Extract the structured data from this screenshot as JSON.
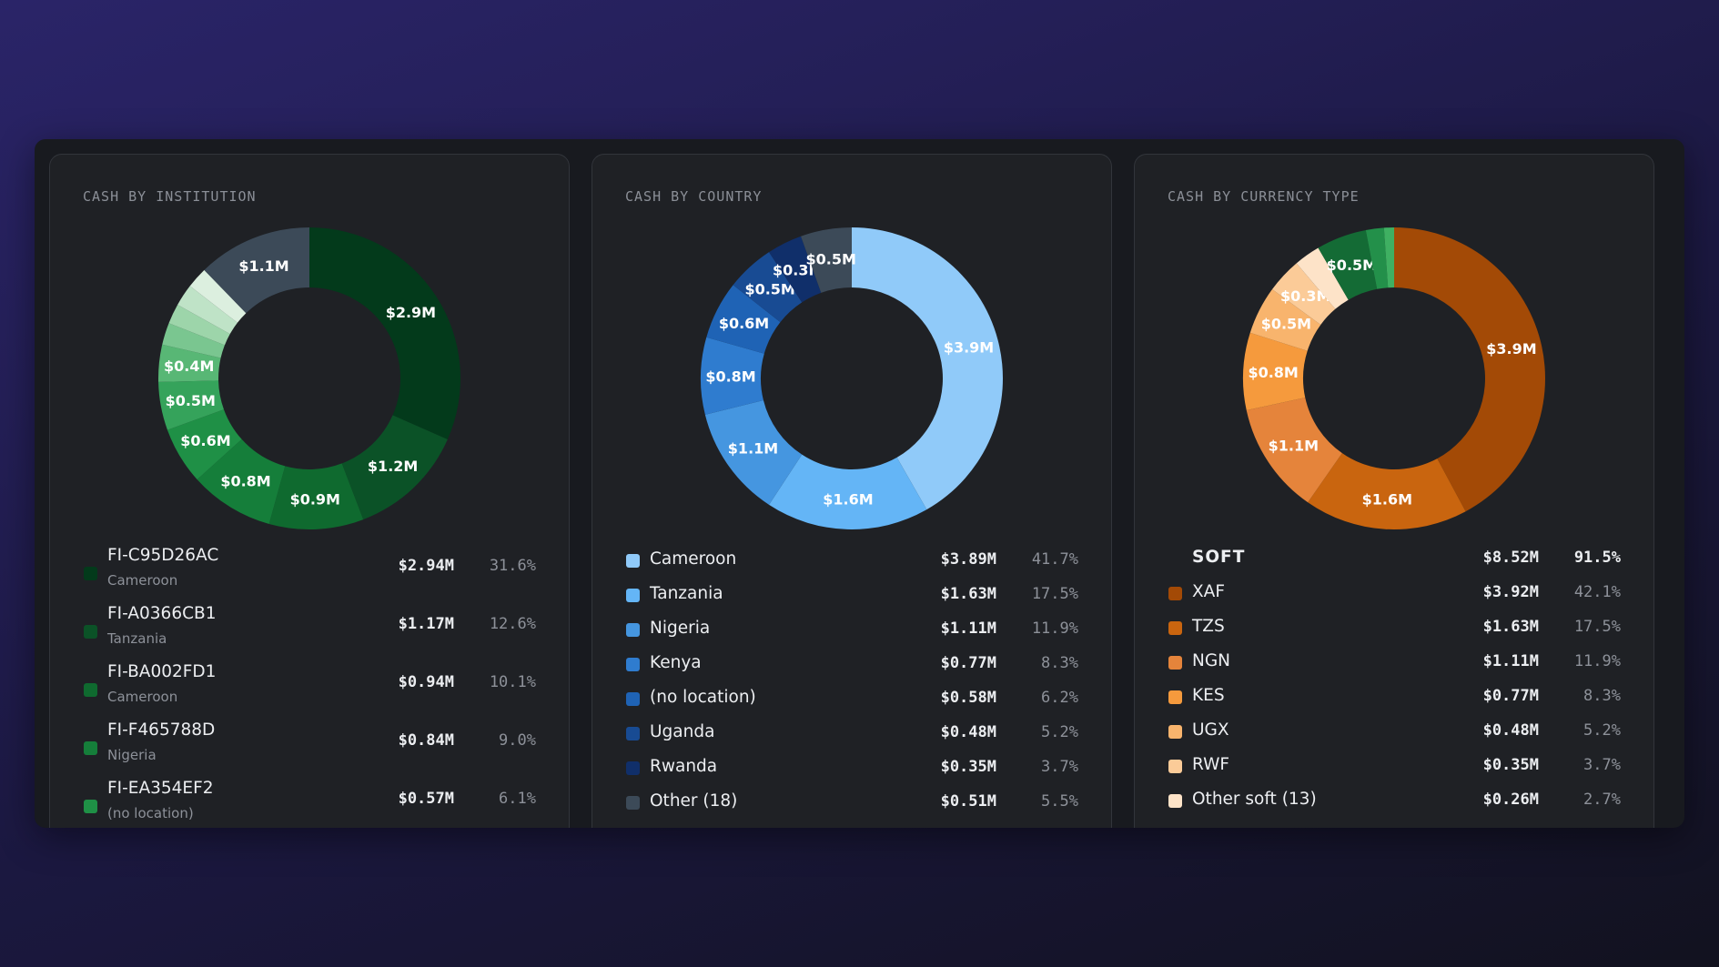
{
  "chart_data": [
    {
      "type": "pie",
      "title": "CASH BY INSTITUTION",
      "slices": [
        {
          "label": "FI-C95D26AC",
          "value": 2.94,
          "color": "#033a1b",
          "data_label": "$2.9M"
        },
        {
          "label": "FI-A0366CB1",
          "value": 1.17,
          "color": "#0b5227",
          "data_label": "$1.2M"
        },
        {
          "label": "FI-BA002FD1",
          "value": 0.94,
          "color": "#0f6a2f",
          "data_label": "$0.9M"
        },
        {
          "label": "FI-F465788D",
          "value": 0.84,
          "color": "#157e3a",
          "data_label": "$0.8M"
        },
        {
          "label": "FI-EA354EF2",
          "value": 0.57,
          "color": "#1f9046",
          "data_label": "$0.6M"
        },
        {
          "label": "",
          "value": 0.48,
          "color": "#35a35b",
          "data_label": "$0.5M"
        },
        {
          "label": "",
          "value": 0.37,
          "color": "#58b775",
          "data_label": "$0.4M"
        },
        {
          "label": "",
          "value": 0.22,
          "color": "#7ac690",
          "data_label": ""
        },
        {
          "label": "",
          "value": 0.2,
          "color": "#9dd5aa",
          "data_label": ""
        },
        {
          "label": "",
          "value": 0.22,
          "color": "#bfe3c7",
          "data_label": ""
        },
        {
          "label": "",
          "value": 0.21,
          "color": "#dcefdf",
          "data_label": ""
        },
        {
          "label": "",
          "value": 1.14,
          "color": "#3c4a58",
          "data_label": "$1.1M"
        }
      ],
      "legend": [
        {
          "name": "FI-C95D26AC",
          "country": "Cameroon",
          "amount": "$2.94M",
          "pct": "31.6%",
          "color": "#033a1b"
        },
        {
          "name": "FI-A0366CB1",
          "country": "Tanzania",
          "amount": "$1.17M",
          "pct": "12.6%",
          "color": "#0b5227"
        },
        {
          "name": "FI-BA002FD1",
          "country": "Cameroon",
          "amount": "$0.94M",
          "pct": "10.1%",
          "color": "#0f6a2f"
        },
        {
          "name": "FI-F465788D",
          "country": "Nigeria",
          "amount": "$0.84M",
          "pct": "9.0%",
          "color": "#157e3a"
        },
        {
          "name": "FI-EA354EF2",
          "country": "(no location)",
          "amount": "$0.57M",
          "pct": "6.1%",
          "color": "#1f9046"
        }
      ]
    },
    {
      "type": "pie",
      "title": "CASH BY COUNTRY",
      "slices": [
        {
          "label": "Cameroon",
          "value": 3.89,
          "color": "#90caf9",
          "data_label": "$3.9M"
        },
        {
          "label": "Tanzania",
          "value": 1.63,
          "color": "#64b5f6",
          "data_label": "$1.6M"
        },
        {
          "label": "Nigeria",
          "value": 1.11,
          "color": "#4596e0",
          "data_label": "$1.1M"
        },
        {
          "label": "Kenya",
          "value": 0.77,
          "color": "#2f7ccf",
          "data_label": "$0.8M"
        },
        {
          "label": "(no location)",
          "value": 0.58,
          "color": "#1f63b5",
          "data_label": "$0.6M"
        },
        {
          "label": "Uganda",
          "value": 0.48,
          "color": "#184b93",
          "data_label": "$0.5M"
        },
        {
          "label": "Rwanda",
          "value": 0.35,
          "color": "#102f6a",
          "data_label": "$0.3M"
        },
        {
          "label": "Other (18)",
          "value": 0.51,
          "color": "#3c4a58",
          "data_label": "$0.5M"
        }
      ],
      "legend": [
        {
          "name": "Cameroon",
          "amount": "$3.89M",
          "pct": "41.7%",
          "color": "#90caf9"
        },
        {
          "name": "Tanzania",
          "amount": "$1.63M",
          "pct": "17.5%",
          "color": "#64b5f6"
        },
        {
          "name": "Nigeria",
          "amount": "$1.11M",
          "pct": "11.9%",
          "color": "#4596e0"
        },
        {
          "name": "Kenya",
          "amount": "$0.77M",
          "pct": "8.3%",
          "color": "#2f7ccf"
        },
        {
          "name": "(no location)",
          "amount": "$0.58M",
          "pct": "6.2%",
          "color": "#1f63b5"
        },
        {
          "name": "Uganda",
          "amount": "$0.48M",
          "pct": "5.2%",
          "color": "#184b93"
        },
        {
          "name": "Rwanda",
          "amount": "$0.35M",
          "pct": "3.7%",
          "color": "#102f6a"
        },
        {
          "name": "Other (18)",
          "amount": "$0.51M",
          "pct": "5.5%",
          "color": "#3c4a58"
        }
      ]
    },
    {
      "type": "pie",
      "title": "CASH BY CURRENCY TYPE",
      "slices": [
        {
          "label": "XAF",
          "value": 3.92,
          "color": "#a34a06",
          "data_label": "$3.9M"
        },
        {
          "label": "TZS",
          "value": 1.63,
          "color": "#c9650f",
          "data_label": "$1.6M"
        },
        {
          "label": "NGN",
          "value": 1.11,
          "color": "#e5843b",
          "data_label": "$1.1M"
        },
        {
          "label": "KES",
          "value": 0.77,
          "color": "#f59a3d",
          "data_label": "$0.8M"
        },
        {
          "label": "UGX",
          "value": 0.48,
          "color": "#f8b46d",
          "data_label": "$0.5M"
        },
        {
          "label": "RWF",
          "value": 0.35,
          "color": "#fbcb98",
          "data_label": "$0.3M"
        },
        {
          "label": "Other soft (13)",
          "value": 0.26,
          "color": "#fde3c8",
          "data_label": ""
        },
        {
          "label": "",
          "value": 0.5,
          "color": "#146b35",
          "data_label": "$0.5M"
        },
        {
          "label": "",
          "value": 0.18,
          "color": "#23904a",
          "data_label": ""
        },
        {
          "label": "",
          "value": 0.1,
          "color": "#3fb062",
          "data_label": ""
        }
      ],
      "group_header": {
        "name": "SOFT",
        "amount": "$8.52M",
        "pct": "91.5%"
      },
      "legend": [
        {
          "name": "XAF",
          "amount": "$3.92M",
          "pct": "42.1%",
          "color": "#a34a06"
        },
        {
          "name": "TZS",
          "amount": "$1.63M",
          "pct": "17.5%",
          "color": "#c9650f"
        },
        {
          "name": "NGN",
          "amount": "$1.11M",
          "pct": "11.9%",
          "color": "#e5843b"
        },
        {
          "name": "KES",
          "amount": "$0.77M",
          "pct": "8.3%",
          "color": "#f59a3d"
        },
        {
          "name": "UGX",
          "amount": "$0.48M",
          "pct": "5.2%",
          "color": "#f8b46d"
        },
        {
          "name": "RWF",
          "amount": "$0.35M",
          "pct": "3.7%",
          "color": "#fbcb98"
        },
        {
          "name": "Other soft (13)",
          "amount": "$0.26M",
          "pct": "2.7%",
          "color": "#fde3c8"
        }
      ]
    }
  ]
}
